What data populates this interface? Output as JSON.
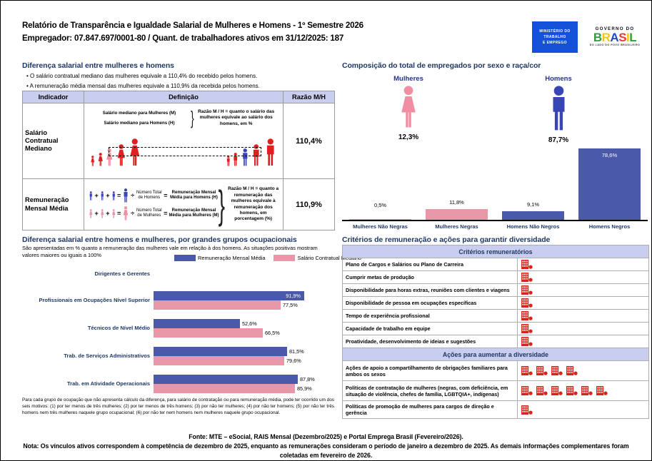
{
  "header": {
    "title_line1": "Relatório de Transparência e Igualdade Salarial de Mulheres e Homens - 1º Semestre 2026",
    "title_line2": "Empregador: 07.847.697/0001-80 / Quant. de trabalhadores ativos em 31/12/2025: 187"
  },
  "logos": {
    "ministry_lines": [
      "MINISTÉRIO DO",
      "TRABALHO",
      "E EMPREGO"
    ],
    "gov_top": "GOVERNO DO",
    "gov_name": "BRASIL",
    "gov_name_colors": [
      "#2E9E41",
      "#F6C60B",
      "#2246C5",
      "#E23B30",
      "#F6C60B",
      "#2E9E41"
    ],
    "gov_sub": "DO LADO DO POVO BRASILEIRO"
  },
  "colors": {
    "navy": "#1F3864",
    "bar_blue": "#4A59A8",
    "bar_pink": "#E797A7",
    "icon_blue": "#3A45B5",
    "icon_pink": "#F08FA2",
    "red_figure": "#E02020",
    "red_icon": "#D6251D",
    "lavender": "#C9CDEE",
    "mte_blue": "#1351D8"
  },
  "pay_gap": {
    "heading": "Diferença salarial entre mulheres e homens",
    "bullets": [
      "O salário contratual mediano das mulheres equivale a 110,4% do recebido pelos homens.",
      "A remuneração média mensal das mulheres equivale a 110,9% da recebida pelos homens."
    ],
    "table": {
      "col_headers": [
        "Indicador",
        "Definição",
        "Razão M/H"
      ],
      "row1": {
        "indicator": "Salário Contratual Mediano",
        "label_women": "Salário mediano para Mulheres (M)",
        "label_men": "Salário mediano para Homens (H)",
        "ratio_text": "Razão M / H = quanto o salário das mulheres equivale ao salário dos homens, em %",
        "ratio_value": "110,4%"
      },
      "row2": {
        "indicator": "Remuneração Mensal Média",
        "men_divisor": "Número Total de Homens",
        "men_result": "Remuneração Mensal Média para Homens (H)",
        "women_divisor": "Número Total de Mulheres",
        "women_result": "Remuneração Mensal Média para Mulheres (M)",
        "ratio_text": "Razão M / H = quanto a remuneração das mulheres equivale à remuneração dos homens, em porcentagem (%)",
        "ratio_value": "110,9%"
      },
      "operators": {
        "plus": "+",
        "equals": "=",
        "divide": "÷",
        "brace": "}"
      }
    }
  },
  "occupational": {
    "heading": "Diferença salarial entre homens e mulheres, por grandes grupos ocupacionais",
    "subtitle": "São apresentadas em % quanto a remuneração das mulheres vale em relação à dos homens. As situações positivas mostram valores maiores ou iguais a 100%",
    "footnote": "Para cada grupo de ocupação que não apresenta cálculo da diferença, para salário de contratação ou para remuneração média, pode ter ocorrido um dos seis motivos: (1) por ter menos de três mulheres; (2) por ter menos de três homens; (3) por não ter mulheres; (4) por não ter homens; (5) por não ter três homens nem três mulheres naquele grupo ocupacional; (6) por não ter nem homens nem mulheres naquele grupo ocupacional."
  },
  "composition": {
    "heading": "Composição do total de empregados por sexo e raça/cor",
    "women_label": "Mulheres",
    "women_pct": "12,3%",
    "men_label": "Homens",
    "men_pct": "87,7%"
  },
  "criteria": {
    "heading": "Critérios de remuneração e ações para garantir diversidade",
    "remuneration_header": "Critérios remuneratórios",
    "remuneration_rows": [
      {
        "label": "Plano de Cargos e Salários ou Plano de Carreira",
        "icon_count": 1
      },
      {
        "label": "Cumprir metas de produção",
        "icon_count": 1
      },
      {
        "label": "Disponibilidade para horas extras, reuniões com clientes e viagens",
        "icon_count": 1
      },
      {
        "label": "Disponibilidade de pessoa em ocupações específicas",
        "icon_count": 1
      },
      {
        "label": "Tempo de experiência profissional",
        "icon_count": 1
      },
      {
        "label": "Capacidade de trabalho em equipe",
        "icon_count": 1
      },
      {
        "label": "Proatividade, desenvolvimento de ideias e sugestões",
        "icon_count": 1
      }
    ],
    "diversity_header": "Ações para aumentar a diversidade",
    "diversity_rows": [
      {
        "label": "Ações de apoio a compartilhamento de obrigações familiares para ambos os sexos",
        "icon_count": 4
      },
      {
        "label": "Políticas de contratação de mulheres (negras, com deficiência, em situação de violência, chefes de família, LGBTQIA+, indígenas)",
        "icon_count": 6
      },
      {
        "label": "Políticas de promoção de mulheres para cargos de direção e gerência",
        "icon_count": 1
      }
    ]
  },
  "footer": {
    "fonte": "Fonte: MTE – eSocial, RAIS Mensal (Dezembro/2025) e Portal Emprega Brasil (Fevereiro/2026).",
    "nota": "Nota: Os vínculos ativos correspondem à competência de dezembro de 2025, enquanto as remunerações consideram o período de janeiro a dezembro de 2025. As demais informações complementares foram coletadas em fevereiro de 2026."
  },
  "chart_data": [
    {
      "id": "composition_by_sex_race",
      "type": "bar",
      "title": "Composição do total de empregados por sexo e raça/cor",
      "categories": [
        "Mulheres Não Negras",
        "Mulheres Negras",
        "Homens Não Negros",
        "Homens Negros"
      ],
      "values": [
        0.5,
        11.8,
        9.1,
        78.6
      ],
      "labels": [
        "0,5%",
        "11,8%",
        "9,1%",
        "78,6%"
      ],
      "colors": [
        "#E797A7",
        "#E797A7",
        "#4A59A8",
        "#4A59A8"
      ],
      "ylim": [
        0,
        80
      ],
      "grid": false,
      "summary_values": {
        "Mulheres": 12.3,
        "Homens": 87.7
      }
    },
    {
      "id": "pay_gap_by_occupation",
      "type": "bar",
      "orientation": "horizontal",
      "title": "Diferença salarial entre homens e mulheres, por grandes grupos ocupacionais",
      "categories": [
        "Dirigentes e Gerentes",
        "Profissionais em Ocupações Nível Superior",
        "Técnicos de Nível Médio",
        "Trab. de Serviços Administrativos",
        "Trab. em Atividade Operacionais"
      ],
      "series": [
        {
          "name": "Remuneração Mensal Média",
          "color": "#4A59A8",
          "values": [
            null,
            91.9,
            52.6,
            81.5,
            87.8
          ],
          "labels": [
            "",
            "91,9%",
            "52,6%",
            "81,5%",
            "87,8%"
          ]
        },
        {
          "name": "Salário Contratual Mediano",
          "color": "#E797A7",
          "values": [
            null,
            77.5,
            66.5,
            79.6,
            85.9
          ],
          "labels": [
            "",
            "77,5%",
            "66,5%",
            "79,6%",
            "85,9%"
          ]
        }
      ],
      "xlim": [
        0,
        100
      ],
      "legend_position": "top-right",
      "grid": false
    }
  ]
}
